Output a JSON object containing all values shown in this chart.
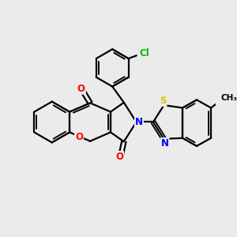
{
  "background_color": "#ebebeb",
  "bond_color": "#000000",
  "bond_width": 1.6,
  "atom_colors": {
    "O": "#ff0000",
    "N": "#0000ff",
    "S": "#cccc00",
    "Cl": "#00bb00",
    "C": "#000000"
  },
  "font_size_atom": 8.5,
  "figsize": [
    3.0,
    3.0
  ],
  "dpi": 100,
  "xlim": [
    0,
    12
  ],
  "ylim": [
    0,
    12
  ]
}
